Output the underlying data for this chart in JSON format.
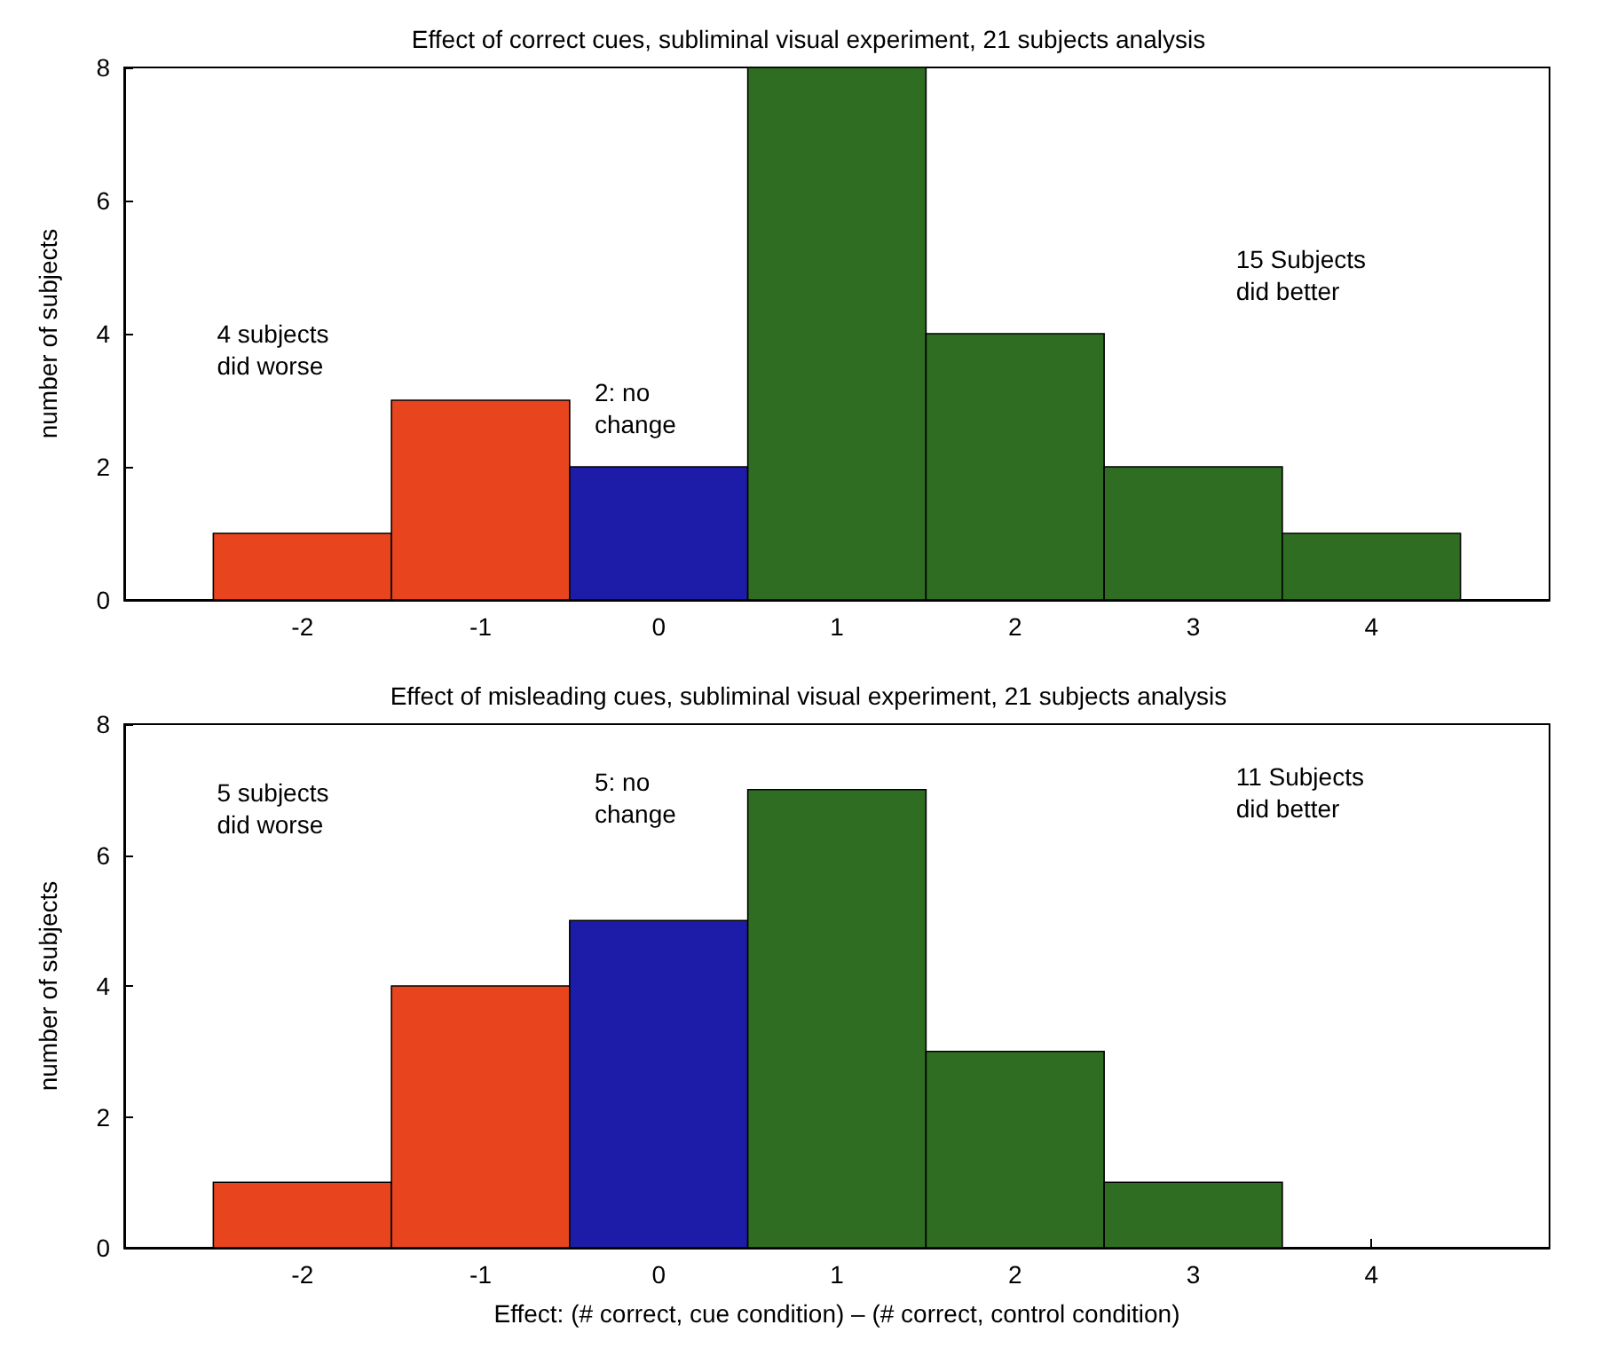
{
  "chart_data": [
    {
      "type": "histogram",
      "title": "Effect of correct cues, subliminal visual experiment, 21 subjects analysis",
      "ylabel": "number of subjects",
      "bins": [
        -2.5,
        -1.5,
        -0.5,
        0.5,
        1.5,
        2.5,
        3.5,
        4.5
      ],
      "values": [
        1,
        3,
        2,
        8,
        4,
        2,
        1
      ],
      "colors": [
        "#e8451e",
        "#e8451e",
        "#1c1ca8",
        "#2f6e22",
        "#2f6e22",
        "#2f6e22",
        "#2f6e22"
      ],
      "xlim": [
        -3,
        5
      ],
      "xticks": [
        -2,
        -1,
        0,
        1,
        2,
        3,
        4
      ],
      "ylim": [
        0,
        8
      ],
      "yticks": [
        0,
        2,
        4,
        6,
        8
      ],
      "grid": false,
      "annotations": [
        "4 subjects\ndid worse",
        "2: no\nchange",
        "15 Subjects\ndid better"
      ]
    },
    {
      "type": "histogram",
      "title": "Effect of misleading cues, subliminal visual experiment, 21 subjects analysis",
      "ylabel": "number of subjects",
      "xlabel": "Effect: (# correct, cue condition) – (# correct, control condition)",
      "bins": [
        -2.5,
        -1.5,
        -0.5,
        0.5,
        1.5,
        2.5,
        3.5,
        4.5
      ],
      "values": [
        1,
        4,
        5,
        7,
        3,
        1,
        0
      ],
      "colors": [
        "#e8451e",
        "#e8451e",
        "#1c1ca8",
        "#2f6e22",
        "#2f6e22",
        "#2f6e22",
        null
      ],
      "xlim": [
        -3,
        5
      ],
      "xticks": [
        -2,
        -1,
        0,
        1,
        2,
        3,
        4
      ],
      "ylim": [
        0,
        8
      ],
      "yticks": [
        0,
        2,
        4,
        6,
        8
      ],
      "grid": false,
      "annotations": [
        "5 subjects\ndid worse",
        "5: no\nchange",
        "11 Subjects\ndid better"
      ]
    }
  ]
}
